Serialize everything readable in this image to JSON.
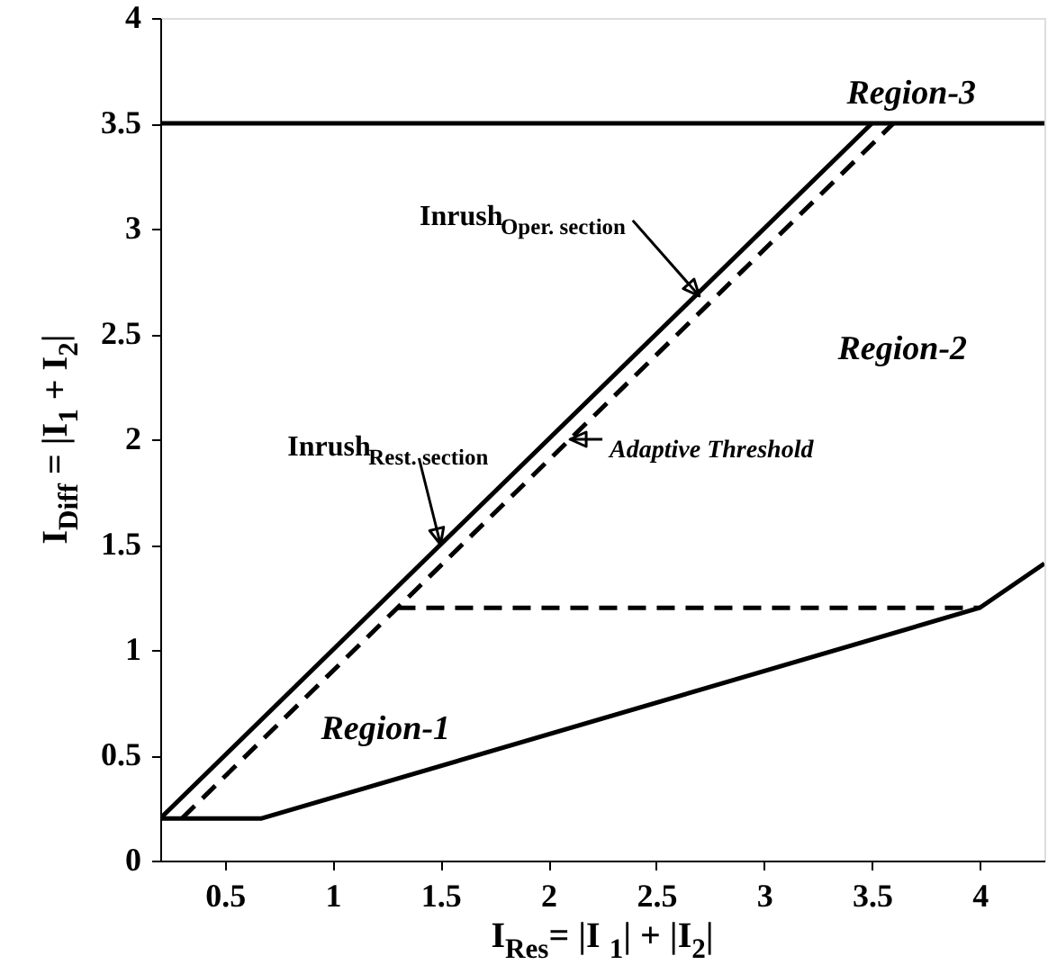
{
  "chart_data": {
    "type": "line",
    "xlabel": "I$_{Res}$=  |I$_{1}$| + |I$_{2}$|",
    "ylabel": "I$_{Diff}$ = |I$_{1}$ + I$_{2}$|",
    "xlim": [
      0.2,
      4.3
    ],
    "ylim": [
      0,
      4
    ],
    "xticks": [
      0.5,
      1,
      1.5,
      2,
      2.5,
      3,
      3.5,
      4
    ],
    "yticks": [
      0,
      0.5,
      1,
      1.5,
      2,
      2.5,
      3,
      3.5,
      4
    ],
    "grid": false,
    "marker": "none",
    "series": [
      {
        "color": "#000000",
        "line_style": "solid",
        "x": [
          0.2,
          3.5
        ],
        "values": [
          0.2,
          3.5
        ]
      },
      {
        "color": "#000000",
        "line_style": "dashed",
        "x": [
          0.3,
          3.6
        ],
        "values": [
          0.2,
          3.5
        ]
      },
      {
        "color": "#000000",
        "line_style": "solid",
        "x": [
          0.2,
          4.3
        ],
        "values": [
          3.5,
          3.5
        ]
      },
      {
        "color": "#000000",
        "line_style": "dashed",
        "x": [
          1.3,
          4
        ],
        "values": [
          1.2,
          1.2
        ]
      },
      {
        "color": "#000000",
        "line_style": "solid",
        "x": [
          0.2,
          0.67,
          4,
          4.3
        ],
        "values": [
          0.2,
          0.2,
          1.2,
          1.41
        ]
      }
    ],
    "annotations": [
      "Region-3",
      "Region-2",
      "Region-1",
      {
        "text": "Inrush$_{Oper. section}$",
        "x": 2.7,
        "y": 2.68
      },
      {
        "text": "Inrush$_{Rest. section}$",
        "x": 1.5,
        "y": 1.5
      },
      {
        "text": "Adaptive Threshold",
        "x": 2.1,
        "y": 2.0
      }
    ]
  }
}
